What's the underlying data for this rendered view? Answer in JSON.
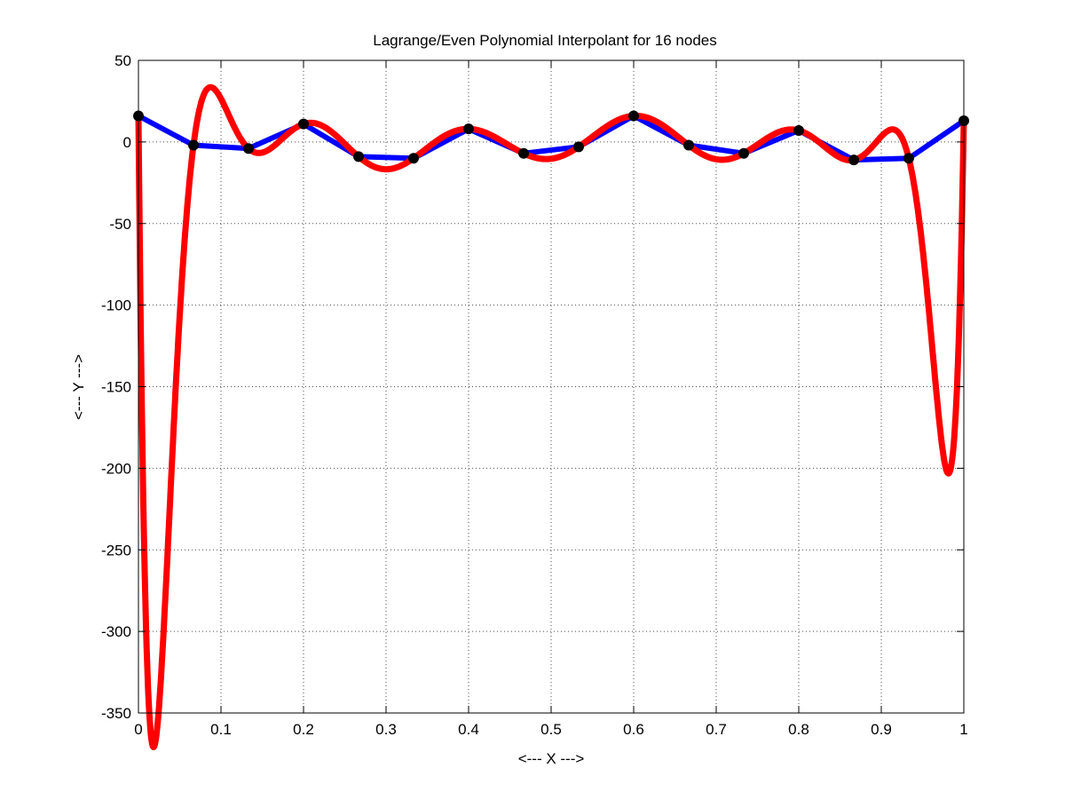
{
  "chart_data": {
    "type": "line",
    "title": "Lagrange/Even Polynomial Interpolant for 16 nodes",
    "xlabel": "<--- X --->",
    "ylabel": "<--- Y --->",
    "xlim": [
      0,
      1
    ],
    "ylim": [
      -350,
      50
    ],
    "xticks": [
      0,
      0.1,
      0.2,
      0.3,
      0.4,
      0.5,
      0.6,
      0.7,
      0.8,
      0.9,
      1
    ],
    "xtick_labels": [
      "0",
      "0.1",
      "0.2",
      "0.3",
      "0.4",
      "0.5",
      "0.6",
      "0.7",
      "0.8",
      "0.9",
      "1"
    ],
    "yticks": [
      50,
      0,
      -50,
      -100,
      -150,
      -200,
      -250,
      -300,
      -350
    ],
    "ytick_labels": [
      "50",
      "0",
      "-50",
      "-100",
      "-150",
      "-200",
      "-250",
      "-300",
      "-350"
    ],
    "grid": true,
    "legend": "none",
    "series": [
      {
        "color": "#0000ff",
        "style": "piecewise-linear through nodes",
        "x": [
          0,
          0.0667,
          0.1333,
          0.2,
          0.2667,
          0.3333,
          0.4,
          0.4667,
          0.5333,
          0.6,
          0.6667,
          0.7333,
          0.8,
          0.8667,
          0.9333,
          1.0
        ],
        "y": [
          16,
          -2,
          -4,
          11,
          -9,
          -10,
          8,
          -7,
          -3,
          16,
          -2,
          -7,
          7,
          -11,
          -10,
          13
        ]
      },
      {
        "color": "#ff0000",
        "style": "degree-15 polynomial interpolant through the same nodes",
        "x": [
          0,
          0.0667,
          0.1333,
          0.2,
          0.2667,
          0.3333,
          0.4,
          0.4667,
          0.5333,
          0.6,
          0.6667,
          0.7333,
          0.8,
          0.8667,
          0.9333,
          1.0
        ],
        "y": [
          16,
          -2,
          -4,
          11,
          -9,
          -10,
          8,
          -7,
          -3,
          16,
          -2,
          -7,
          7,
          -11,
          -10,
          13
        ]
      },
      {
        "color": "#000000",
        "style": "node markers",
        "x": [
          0,
          0.0667,
          0.1333,
          0.2,
          0.2667,
          0.3333,
          0.4,
          0.4667,
          0.5333,
          0.6,
          0.6667,
          0.7333,
          0.8,
          0.8667,
          0.9333,
          1.0
        ],
        "y": [
          16,
          -2,
          -4,
          11,
          -9,
          -10,
          8,
          -7,
          -3,
          16,
          -2,
          -7,
          7,
          -11,
          -10,
          13
        ]
      }
    ]
  }
}
